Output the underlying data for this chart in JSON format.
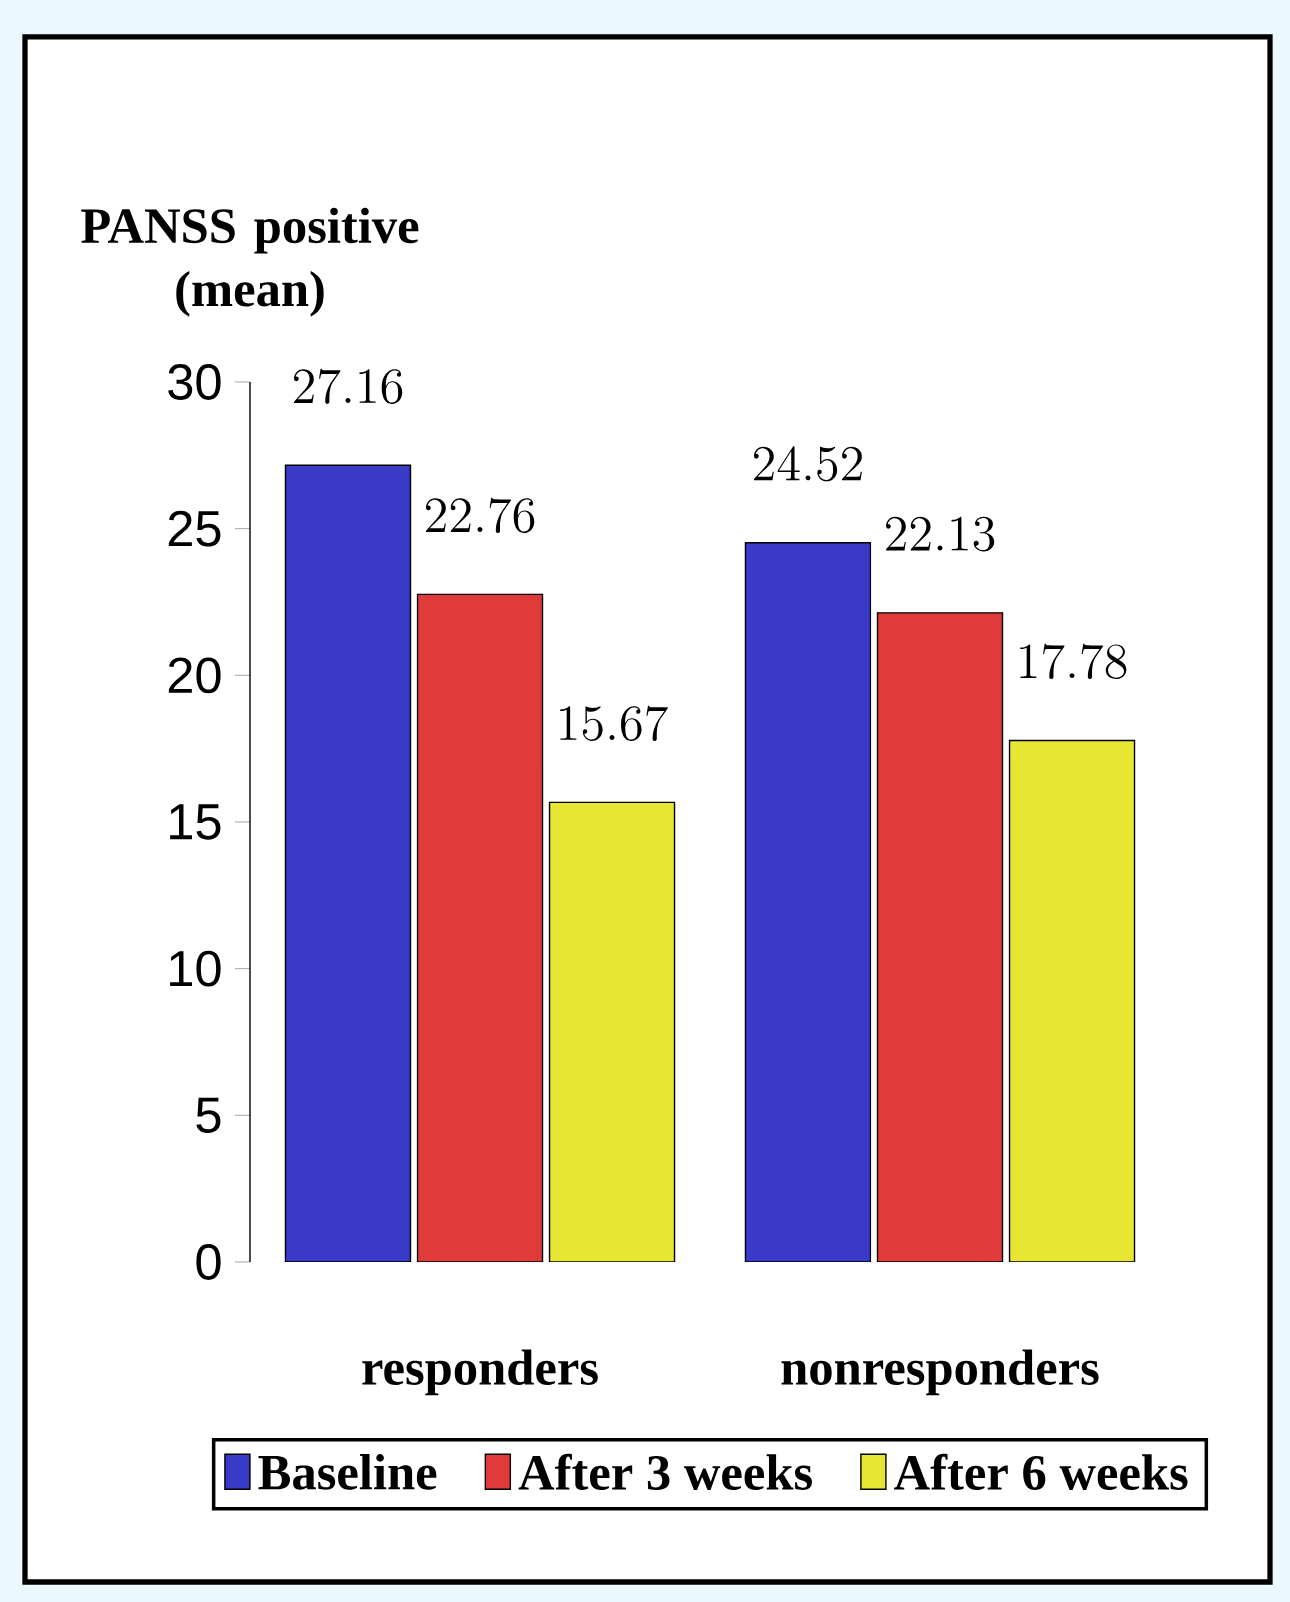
{
  "chart_data": {
    "type": "bar",
    "ylabel": "PANSS positive (mean)",
    "categories": [
      "responders",
      "nonresponders"
    ],
    "series": [
      {
        "name": "Baseline",
        "color": "#3a3ac8",
        "values": [
          27.16,
          24.52
        ]
      },
      {
        "name": "After 3 weeks",
        "color": "#e03a3a",
        "values": [
          22.76,
          22.13
        ]
      },
      {
        "name": "After 6 weeks",
        "color": "#e6e633",
        "values": [
          15.67,
          17.78
        ]
      }
    ],
    "ylim": [
      0,
      30
    ],
    "yticks": [
      0,
      5,
      10,
      15,
      20,
      25,
      30
    ],
    "data_labels": true,
    "legend": "bottom"
  }
}
